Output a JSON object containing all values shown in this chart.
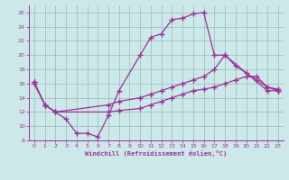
{
  "xlabel": "Windchill (Refroidissement éolien,°C)",
  "background_color": "#cce8e8",
  "line_color": "#993399",
  "grid_color": "#99bbbb",
  "xlim": [
    -0.5,
    23.5
  ],
  "ylim": [
    8,
    27
  ],
  "xticks": [
    0,
    1,
    2,
    3,
    4,
    5,
    6,
    7,
    8,
    9,
    10,
    11,
    12,
    13,
    14,
    15,
    16,
    17,
    18,
    19,
    20,
    21,
    22,
    23
  ],
  "yticks": [
    8,
    10,
    12,
    14,
    16,
    18,
    20,
    22,
    24,
    26
  ],
  "line1_x": [
    0,
    1,
    2,
    3,
    4,
    5,
    6,
    7,
    8,
    10,
    11,
    12,
    13,
    14,
    15,
    16,
    17,
    18,
    22,
    23
  ],
  "line1_y": [
    16,
    13,
    12,
    11,
    9,
    9,
    8.5,
    11.5,
    15,
    20,
    22.5,
    23,
    25,
    25.2,
    25.8,
    26,
    20,
    20,
    15,
    15
  ],
  "line2_x": [
    0,
    1,
    2,
    7,
    8,
    10,
    11,
    12,
    13,
    14,
    15,
    16,
    17,
    18,
    19,
    20,
    21,
    22,
    23
  ],
  "line2_y": [
    16.2,
    13,
    12,
    13,
    13.5,
    14,
    14.5,
    15,
    15.5,
    16,
    16.5,
    17,
    18,
    20,
    18.5,
    17.5,
    16.5,
    15.5,
    15.2
  ],
  "line3_x": [
    0,
    1,
    2,
    7,
    8,
    10,
    11,
    12,
    13,
    14,
    15,
    16,
    17,
    18,
    19,
    20,
    21,
    22,
    23
  ],
  "line3_y": [
    16.2,
    13,
    12,
    12,
    12.2,
    12.5,
    13,
    13.5,
    14,
    14.5,
    15,
    15.2,
    15.5,
    16,
    16.5,
    17,
    17,
    15.5,
    15
  ]
}
